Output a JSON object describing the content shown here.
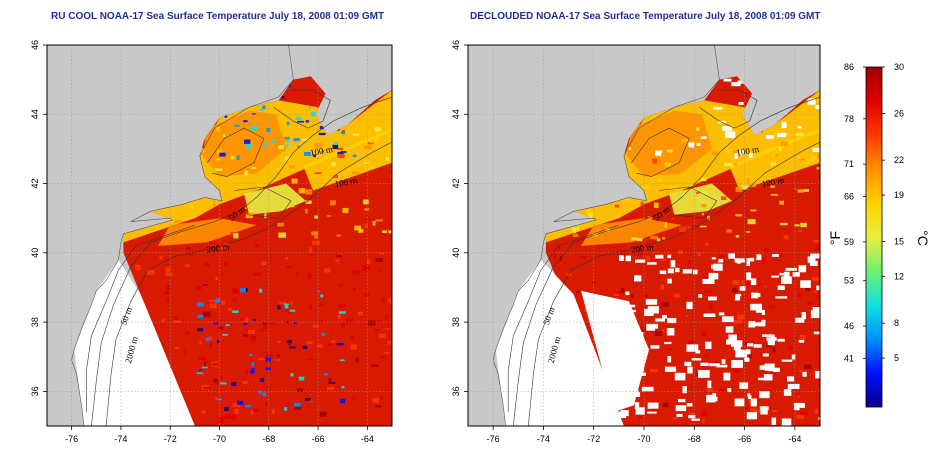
{
  "panels": [
    {
      "title": "RU COOL NOAA-17 Sea Surface Temperature July 18, 2008 01:09 GMT",
      "declouded": false,
      "contour_labels": [
        "100 m",
        "100 m",
        "50 m",
        "200 m",
        "50 m",
        "2000 m"
      ]
    },
    {
      "title": "DECLOUDED NOAA-17 Sea Surface Temperature July 18, 2008 01:09 GMT",
      "declouded": true,
      "contour_labels": [
        "100 m",
        "100 m",
        "50 m",
        "200 m",
        "50 m",
        "2000 m"
      ]
    }
  ],
  "axes": {
    "x_ticks": [
      "-76",
      "-74",
      "-72",
      "-70",
      "-68",
      "-66",
      "-64"
    ],
    "y_ticks": [
      "36",
      "38",
      "40",
      "42",
      "44",
      "46"
    ]
  },
  "colorbar": {
    "fahrenheit_ticks": [
      "86",
      "78",
      "71",
      "66",
      "59",
      "53",
      "46",
      "41"
    ],
    "celsius_ticks": [
      "30",
      "26",
      "22",
      "19",
      "15",
      "12",
      "8",
      "5"
    ],
    "fahrenheit_unit": "°F",
    "celsius_unit": "°C",
    "colors": [
      "#08008c",
      "#0010ff",
      "#0090ff",
      "#10e0e0",
      "#70f070",
      "#e8f040",
      "#ffd000",
      "#ff9000",
      "#ff3800",
      "#e00000",
      "#a00000"
    ]
  }
}
